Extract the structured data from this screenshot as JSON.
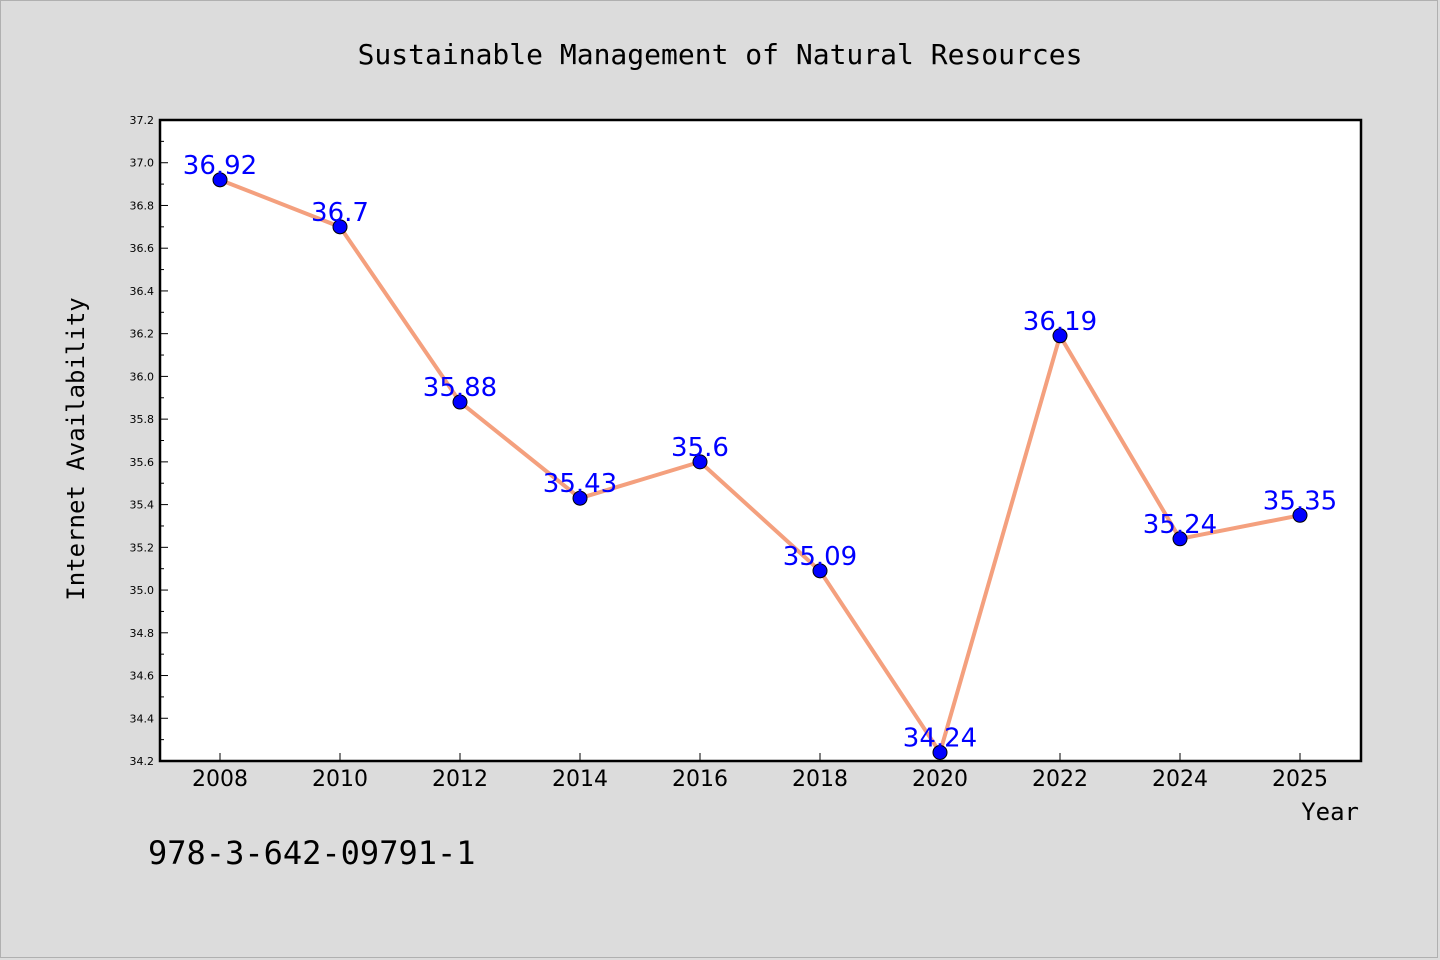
{
  "chart_data": {
    "type": "line",
    "title": "Sustainable Management of Natural Resources",
    "xlabel": "Year",
    "ylabel": "Internet Availability",
    "x": [
      "2008",
      "2010",
      "2012",
      "2014",
      "2016",
      "2018",
      "2020",
      "2022",
      "2024",
      "2025"
    ],
    "values": [
      36.92,
      36.7,
      35.88,
      35.43,
      35.6,
      35.09,
      34.24,
      36.19,
      35.24,
      35.35
    ],
    "data_labels": [
      "36.92",
      "36.7",
      "35.88",
      "35.43",
      "35.6",
      "35.09",
      "34.24",
      "36.19",
      "35.24",
      "35.35"
    ],
    "ylim": [
      34.2,
      37.2
    ],
    "yticks": [
      "34.2",
      "34.4",
      "34.6",
      "34.8",
      "35.0",
      "35.2",
      "35.4",
      "35.6",
      "35.8",
      "36.0",
      "36.2",
      "36.4",
      "36.6",
      "36.8",
      "37.0",
      "37.2"
    ],
    "grid": false,
    "line_color": "#f4a07e",
    "marker_color": "#0000ff",
    "label_color": "#0000ff",
    "background": "#dcdcdc",
    "plot_background": "#ffffff"
  },
  "footnote": "978-3-642-09791-1"
}
